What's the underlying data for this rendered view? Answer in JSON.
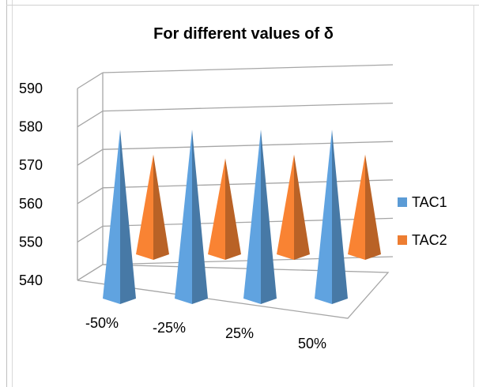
{
  "chart_data": {
    "type": "bar",
    "style": "3d-pyramid",
    "title": "For different values of δ",
    "categories": [
      "-50%",
      "-25%",
      "25%",
      "50%"
    ],
    "series": [
      {
        "name": "TAC1",
        "color": "#5b9bd5",
        "values": [
          584,
          584,
          584,
          584
        ]
      },
      {
        "name": "TAC2",
        "color": "#ed7d31",
        "values": [
          566,
          565,
          566,
          566
        ]
      }
    ],
    "yticks": [
      "540",
      "550",
      "560",
      "570",
      "580",
      "590"
    ],
    "ylim": [
      540,
      590
    ],
    "grid": true,
    "legend_position": "right"
  }
}
